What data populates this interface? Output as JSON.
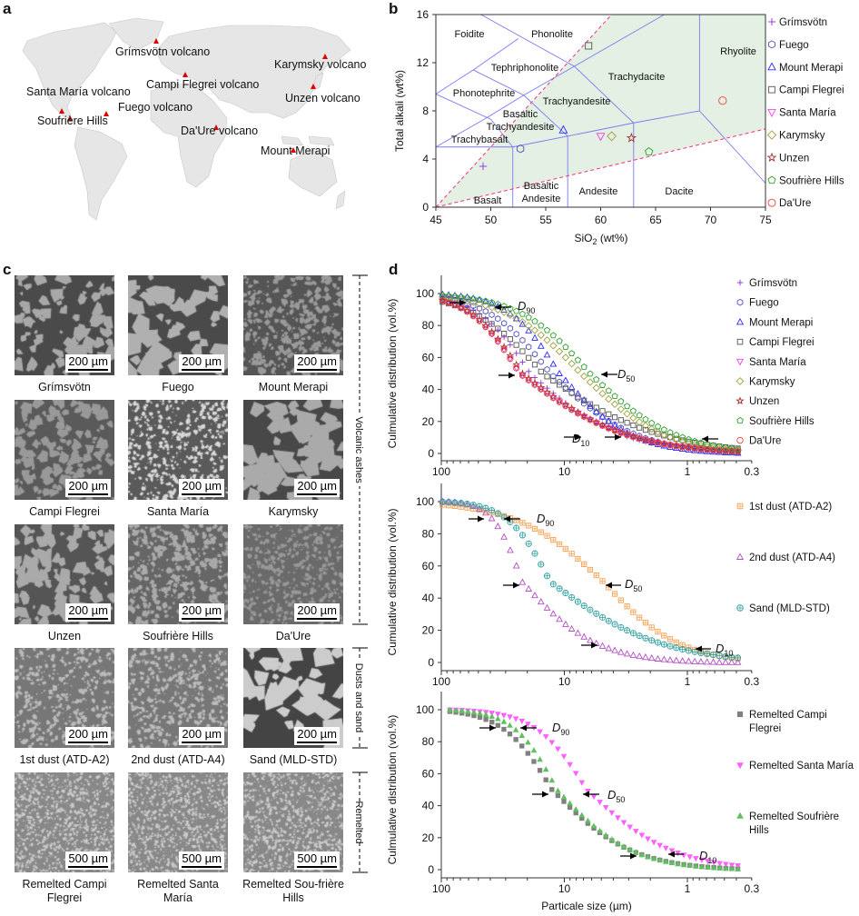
{
  "panels": {
    "a": "a",
    "b": "b",
    "c": "c",
    "d": "d"
  },
  "map": {
    "land_color": "#e6e6e6",
    "marker_color": "#e00000",
    "volcanoes": [
      {
        "label": "Grímsvötn volcano"
      },
      {
        "label": "Campi Flegrei volcano"
      },
      {
        "label": "Karymsky volcano"
      },
      {
        "label": "Unzen volcano"
      },
      {
        "label": "Santa María  volcano"
      },
      {
        "label": "Fuego volcano"
      },
      {
        "label": "Soufrière Hills"
      },
      {
        "label": "Da'Ure volcano"
      },
      {
        "label": "Mount Merapi"
      }
    ]
  },
  "micrographs": {
    "groups": [
      "Volcanic ashes",
      "Dusts and sand",
      "Remelted"
    ],
    "items": [
      {
        "label": "Grímsvötn",
        "scale": "200 µm"
      },
      {
        "label": "Fuego",
        "scale": "200 µm"
      },
      {
        "label": "Mount Merapi",
        "scale": "200 µm"
      },
      {
        "label": "Campi Flegrei",
        "scale": "200 µm"
      },
      {
        "label": "Santa María",
        "scale": "200 µm"
      },
      {
        "label": "Karymsky",
        "scale": "200 µm"
      },
      {
        "label": "Unzen",
        "scale": "200 µm"
      },
      {
        "label": "Soufrière Hills",
        "scale": "200 µm"
      },
      {
        "label": "Da'Ure",
        "scale": "200 µm"
      },
      {
        "label": "1st dust (ATD-A2)",
        "scale": "200 µm"
      },
      {
        "label": "2nd dust (ATD-A4)",
        "scale": "200 µm"
      },
      {
        "label": "Sand (MLD-STD)",
        "scale": "200 µm"
      },
      {
        "label": "Remelted Campi Flegrei",
        "scale": "500 µm"
      },
      {
        "label": "Remelted Santa María",
        "scale": "500 µm"
      },
      {
        "label": "Remelted Sou-frière Hills",
        "scale": "500 µm"
      }
    ]
  },
  "chart_data": [
    {
      "type": "scatter",
      "panel": "b",
      "xlabel": {
        "main": "SiO",
        "sub": "2",
        "unit": " (wt%)"
      },
      "ylabel": "Total alkali (wt%)",
      "xlim": [
        45,
        75
      ],
      "ylim": [
        0,
        16
      ],
      "xticks": [
        "45",
        "50",
        "55",
        "60",
        "65",
        "70",
        "75"
      ],
      "yticks": [
        "0",
        "4",
        "8",
        "12",
        "16"
      ],
      "shaded_region_color": "#e3f0e3",
      "region_labels": [
        "Foidite",
        "Phonolite",
        "Tephriphonolite",
        "Trachydacite",
        "Rhyolite",
        "Phonotephrite",
        "Trachyandesite",
        "Basaltic",
        "Trachyandesite",
        "Trachybasalt",
        "Basaltic",
        "Andesite",
        "Andesite",
        "Dacite",
        "Basalt"
      ],
      "legend_position": "right",
      "series": [
        {
          "name": "Grímsvötn",
          "marker": "plus",
          "color": "#a040e0",
          "x": 49.3,
          "y": 3.4
        },
        {
          "name": "Fuego",
          "marker": "hexagon",
          "color": "#5050c0",
          "x": 52.7,
          "y": 4.85
        },
        {
          "name": "Mount Merapi",
          "marker": "triangle",
          "color": "#2a2aff",
          "x": 56.6,
          "y": 6.4
        },
        {
          "name": "Campi Flegrei",
          "marker": "square",
          "color": "#555555",
          "x": 58.9,
          "y": 13.4
        },
        {
          "name": "Santa María",
          "marker": "triangle-down",
          "color": "#f040f0",
          "x": 60.0,
          "y": 5.9
        },
        {
          "name": "Karymsky",
          "marker": "diamond",
          "color": "#a0a040",
          "x": 61.0,
          "y": 5.9
        },
        {
          "name": "Unzen",
          "marker": "star",
          "color": "#a03030",
          "x": 62.8,
          "y": 5.75
        },
        {
          "name": "Soufrière Hills",
          "marker": "pentagon",
          "color": "#30a030",
          "x": 64.4,
          "y": 4.6
        },
        {
          "name": "Da'Ure",
          "marker": "circle",
          "color": "#f04040",
          "x": 71.1,
          "y": 8.85
        }
      ]
    },
    {
      "type": "scatter",
      "panel": "d-top",
      "ylabel": "Culmulative distribution (vol.%)",
      "xscale": "log-reversed",
      "xlim": [
        100,
        0.3
      ],
      "ylim": [
        0,
        100
      ],
      "xticks": [
        "100",
        "10",
        "1",
        "0.3"
      ],
      "yticks": [
        "0",
        "20",
        "40",
        "60",
        "80",
        "100"
      ],
      "annotations": [
        {
          "letter": "D",
          "sub": "90"
        },
        {
          "letter": "D",
          "sub": "50"
        },
        {
          "letter": "D",
          "sub": "10"
        }
      ],
      "series_description": "cumulative % finer; each series given by sizes (µm) at 90/50/10 %",
      "series": [
        {
          "name": "Grímsvötn",
          "marker": "plus",
          "color": "#a040e0",
          "fill": false,
          "d90": 57,
          "d50": 19,
          "d10": 2.8
        },
        {
          "name": "Fuego",
          "marker": "hexagon",
          "color": "#5050c0",
          "fill": false,
          "d90": 48,
          "d50": 13,
          "d10": 2.2
        },
        {
          "name": "Mount Merapi",
          "marker": "triangle",
          "color": "#2a2aff",
          "fill": false,
          "d90": 32,
          "d50": 11,
          "d10": 2.5
        },
        {
          "name": "Campi Flegrei",
          "marker": "square",
          "color": "#555555",
          "fill": false,
          "d90": 65,
          "d50": 15,
          "d10": 1.3
        },
        {
          "name": "Santa María",
          "marker": "triangle-down",
          "color": "#f040f0",
          "fill": false,
          "d90": 67,
          "d50": 23,
          "d10": 2.5
        },
        {
          "name": "Karymsky",
          "marker": "diamond",
          "color": "#a0a040",
          "fill": false,
          "d90": 36,
          "d50": 7.3,
          "d10": 1.3
        },
        {
          "name": "Unzen",
          "marker": "star",
          "color": "#a03030",
          "fill": false,
          "d90": 66,
          "d50": 22,
          "d10": 2.5
        },
        {
          "name": "Soufrière Hills",
          "marker": "pentagon",
          "color": "#30a030",
          "fill": false,
          "d90": 27,
          "d50": 6.2,
          "d10": 1.05
        },
        {
          "name": "Da'Ure",
          "marker": "circle",
          "color": "#f04040",
          "fill": false,
          "d90": 67,
          "d50": 23,
          "d10": 2.5
        }
      ]
    },
    {
      "type": "scatter",
      "panel": "d-middle",
      "ylabel": "Cumulative distribution (vol.%)",
      "xscale": "log-reversed",
      "xlim": [
        100,
        0.3
      ],
      "ylim": [
        0,
        100
      ],
      "xticks": [
        "100",
        "10",
        "1",
        "0.3"
      ],
      "yticks": [
        "0",
        "20",
        "40",
        "60",
        "80",
        "100"
      ],
      "annotations": [
        {
          "letter": "D",
          "sub": "90"
        },
        {
          "letter": "D",
          "sub": "50"
        },
        {
          "letter": "D",
          "sub": "10"
        }
      ],
      "series": [
        {
          "name": "1st dust (ATD-A2)",
          "marker": "square-plus",
          "color": "#f5a050",
          "fill": false,
          "d90": 29,
          "d50": 4.8,
          "d10": 1.0
        },
        {
          "name": "2nd dust (ATD-A4)",
          "marker": "triangle",
          "color": "#b050c0",
          "fill": false,
          "d90": 40,
          "d50": 22,
          "d10": 4.7
        },
        {
          "name": "Sand (MLD-STD)",
          "marker": "circle-plus",
          "color": "#30a0a0",
          "fill": false,
          "d90": 31,
          "d50": 13,
          "d10": 1.3
        }
      ]
    },
    {
      "type": "scatter",
      "panel": "d-bottom",
      "xlabel": "Particale size (µm)",
      "ylabel": "Culmulative distribution (vol.%)",
      "xscale": "log-reversed",
      "xlim": [
        100,
        0.3
      ],
      "ylim": [
        0,
        100
      ],
      "xticks": [
        "100",
        "10",
        "1",
        "0.3"
      ],
      "yticks": [
        "0",
        "20",
        "40",
        "60",
        "80",
        "100"
      ],
      "annotations": [
        {
          "letter": "D",
          "sub": "90"
        },
        {
          "letter": "D",
          "sub": "50"
        },
        {
          "letter": "D",
          "sub": "10"
        }
      ],
      "series": [
        {
          "name": "Remelted Campi Flegrei",
          "name_lines": [
            "Remelted Campi",
            "Flegrei"
          ],
          "marker": "square",
          "color": "#808080",
          "fill": true,
          "d90": 35,
          "d50": 12.6,
          "d10": 2.4
        },
        {
          "name": "Remelted Santa María",
          "name_lines": [
            "Remelted Santa María"
          ],
          "marker": "triangle-down",
          "color": "#ff60ff",
          "fill": true,
          "d90": 19,
          "d50": 6.6,
          "d10": 1.1
        },
        {
          "name": "Remelted Soufrière Hills",
          "name_lines": [
            "Remelted Soufrière",
            "Hills"
          ],
          "marker": "triangle",
          "color": "#60c060",
          "fill": true,
          "d90": 28,
          "d50": 11.5,
          "d10": 2.4
        }
      ]
    }
  ]
}
